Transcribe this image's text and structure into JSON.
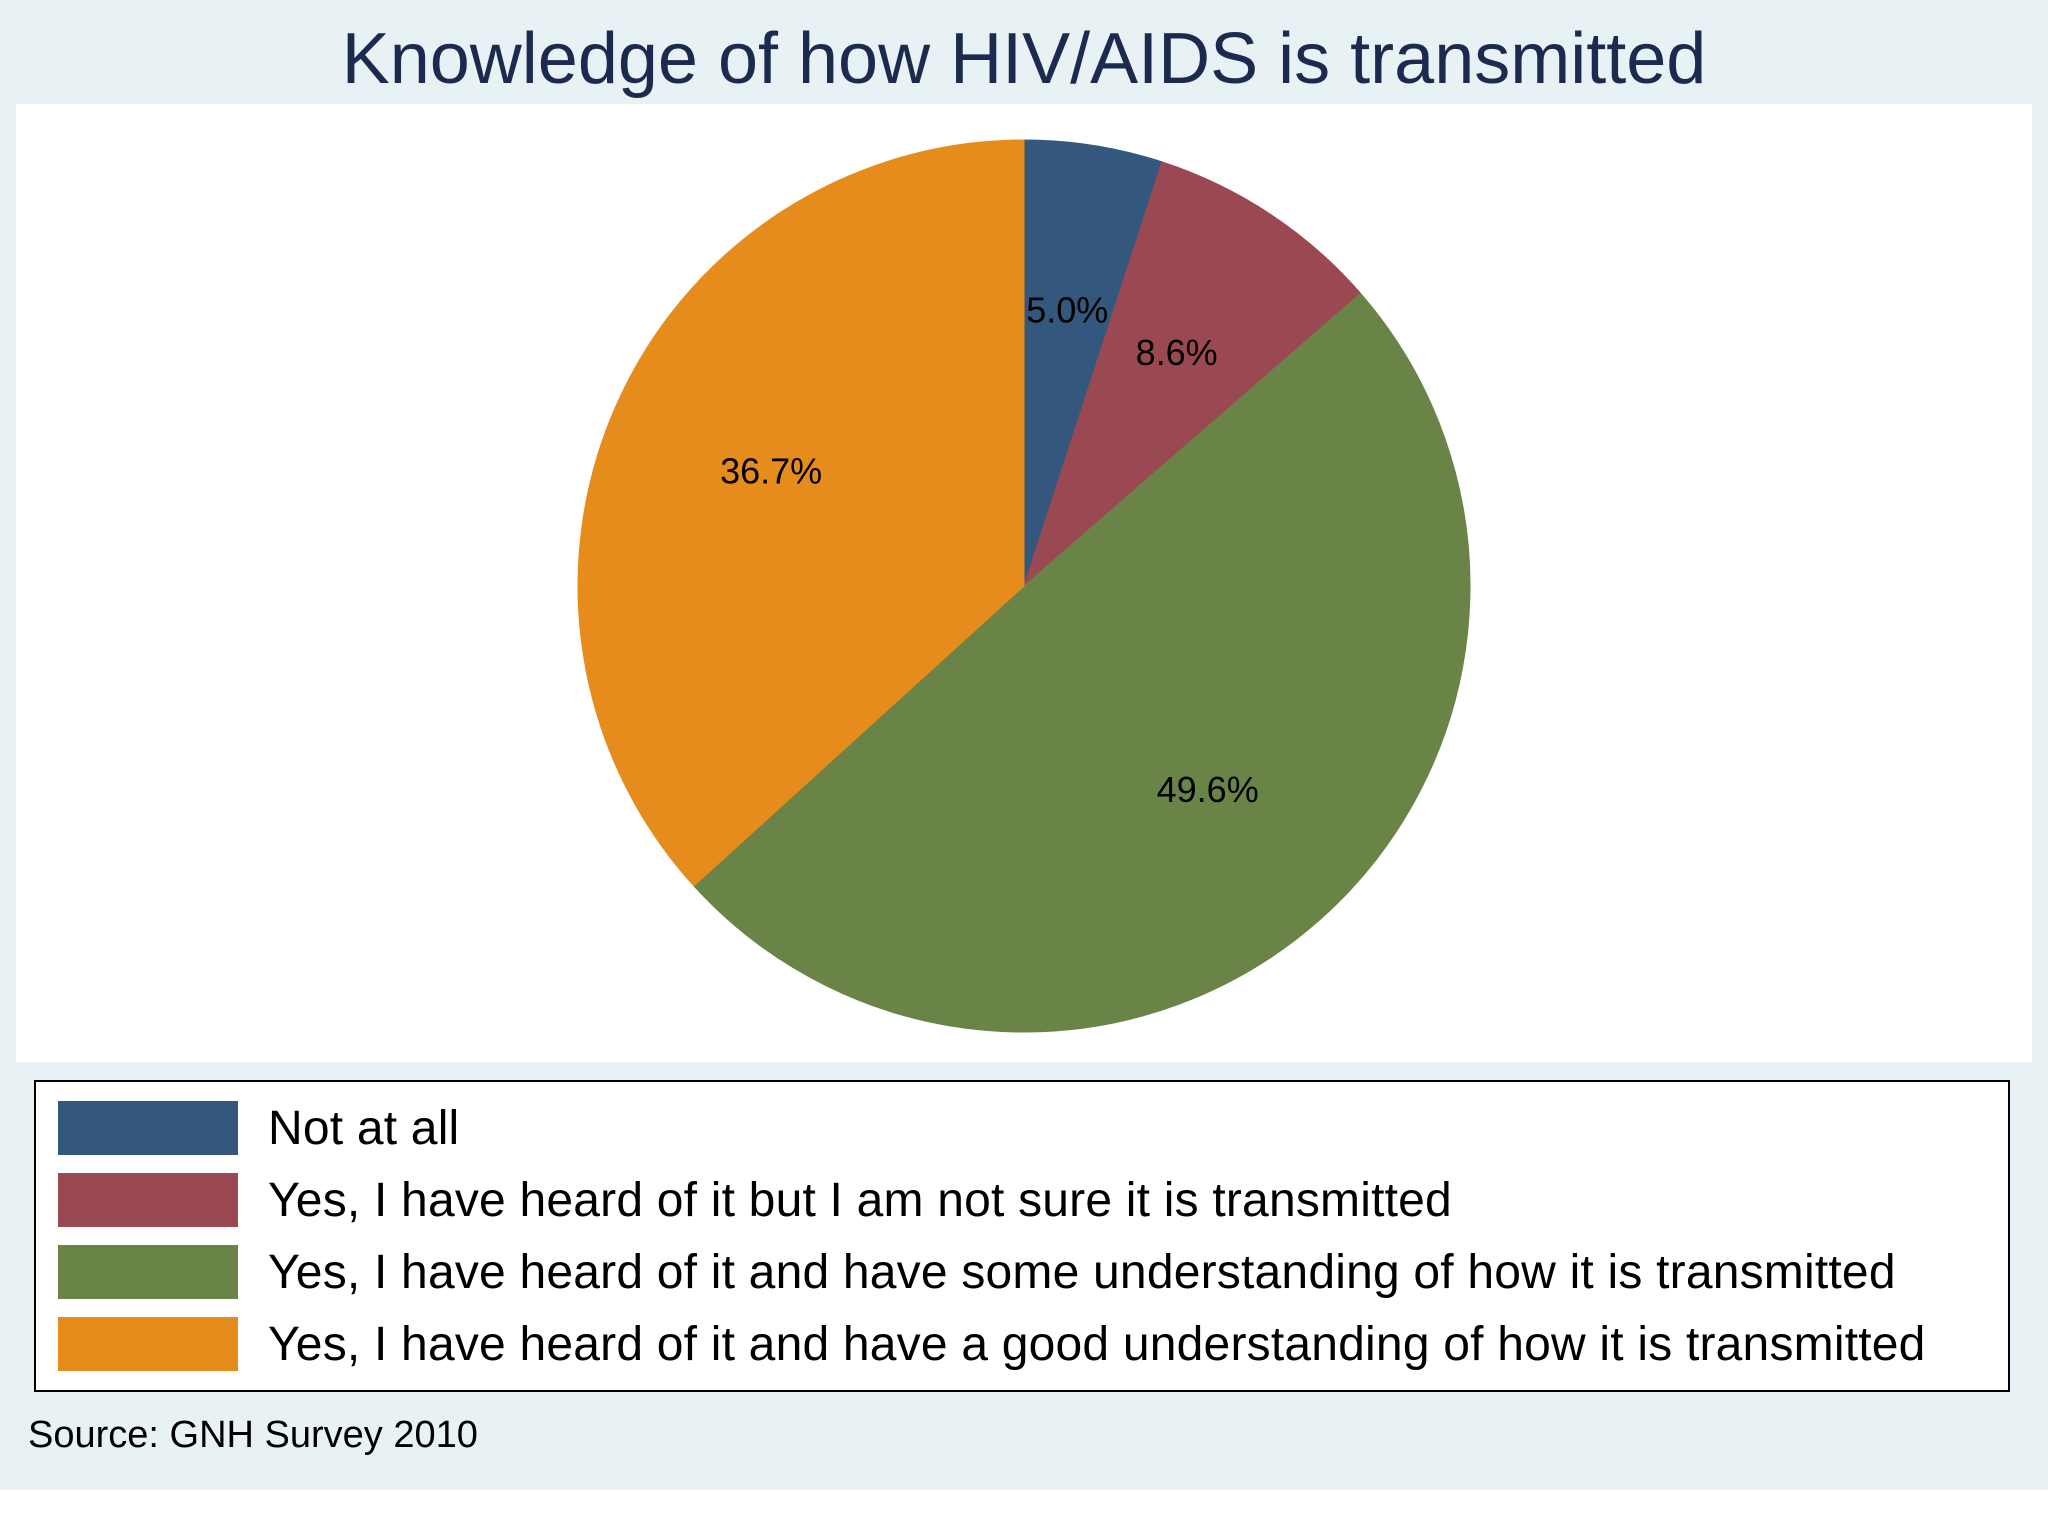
{
  "chart_data": {
    "type": "pie",
    "title": "Knowledge of how HIV/AIDS is transmitted",
    "start_angle": "12 o'clock",
    "direction": "clockwise",
    "legend_placement": "bottom",
    "slices": [
      {
        "label": "Not at all",
        "value": 5.0,
        "value_label": "5.0%",
        "color": "#34587d"
      },
      {
        "label": "Yes, I have heard of it but I am not sure it is transmitted",
        "value": 8.6,
        "value_label": "8.6%",
        "color": "#9a4851"
      },
      {
        "label": "Yes, I have heard of it and have some understanding of how it is transmitted",
        "value": 49.6,
        "value_label": "49.6%",
        "color": "#6a8447"
      },
      {
        "label": "Yes, I have heard of it and have a good understanding of how it is transmitted",
        "value": 36.7,
        "value_label": "36.7%",
        "color": "#e68c1c"
      }
    ],
    "note": "Source: GNH Survey 2010"
  }
}
